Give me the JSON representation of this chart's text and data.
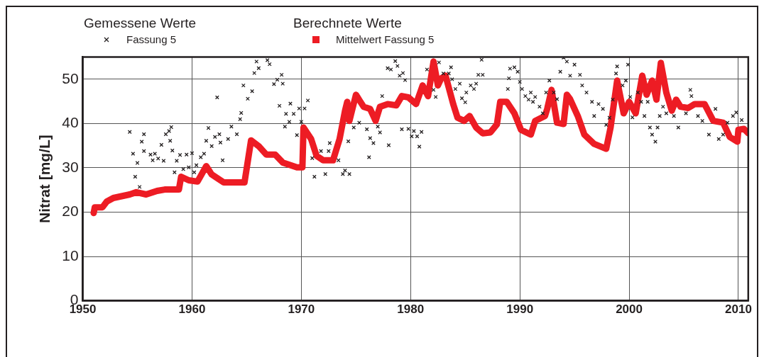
{
  "chart_data": {
    "type": "scatter",
    "ylabel": "Nitrat [mg/L]",
    "annotations": [
      "Gemessene Werte",
      "Berechnete Werte"
    ],
    "xlim": [
      1950,
      2010.9
    ],
    "xticks": [
      1950,
      1960,
      1970,
      1980,
      1990,
      2000,
      2010
    ],
    "ylim": [
      0,
      55
    ],
    "yticks": [
      0,
      10,
      20,
      30,
      40,
      50
    ],
    "grid": true,
    "legend": "top",
    "series": [
      {
        "name": "Fassung 5",
        "marker": "cross",
        "color": "#231f20",
        "x": [
          1954.3,
          1954.6,
          1954.8,
          1955.0,
          1955.2,
          1955.4,
          1955.6,
          1955.6,
          1956.2,
          1956.4,
          1956.6,
          1956.9,
          1957.2,
          1957.4,
          1957.6,
          1957.9,
          1958.1,
          1958.0,
          1958.2,
          1958.4,
          1958.6,
          1958.9,
          1959.2,
          1959.5,
          1959.7,
          1960.0,
          1960.2,
          1960.4,
          1960.8,
          1961.1,
          1961.3,
          1961.5,
          1961.8,
          1962.1,
          1962.3,
          1962.5,
          1962.6,
          1962.8,
          1963.3,
          1963.6,
          1964.1,
          1964.4,
          1964.5,
          1964.7,
          1965.1,
          1965.5,
          1965.7,
          1965.9,
          1966.1,
          1966.9,
          1967.1,
          1967.5,
          1967.8,
          1968.2,
          1968.3,
          1968.0,
          1968.5,
          1968.6,
          1968.9,
          1969.0,
          1969.3,
          1969.6,
          1969.8,
          1970.0,
          1970.3,
          1970.6,
          1971.0,
          1971.2,
          1971.8,
          1972.2,
          1972.5,
          1972.6,
          1973.4,
          1973.8,
          1974.0,
          1974.4,
          1974.3,
          1974.8,
          1975.3,
          1976.0,
          1976.2,
          1976.3,
          1976.6,
          1977.0,
          1977.2,
          1977.4,
          1978.0,
          1977.9,
          1978.2,
          1978.6,
          1978.8,
          1979.0,
          1979.3,
          1979.5,
          1979.2,
          1979.8,
          1980.1,
          1980.3,
          1980.6,
          1980.8,
          1981.0,
          1981.5,
          1982.1,
          1982.3,
          1982.6,
          1983.0,
          1983.5,
          1983.7,
          1983.8,
          1984.1,
          1984.5,
          1984.7,
          1985.0,
          1985.1,
          1985.5,
          1985.8,
          1986.0,
          1986.2,
          1986.6,
          1986.5,
          1988.9,
          1989.0,
          1989.1,
          1989.5,
          1989.8,
          1990.0,
          1990.2,
          1990.5,
          1990.8,
          1991.2,
          1991.0,
          1991.4,
          1991.8,
          1992.1,
          1992.4,
          1992.7,
          1993.1,
          1993.4,
          1993.7,
          1994.0,
          1994.3,
          1994.6,
          1995.0,
          1995.5,
          1995.7,
          1996.1,
          1996.6,
          1996.8,
          1997.2,
          1997.6,
          1997.9,
          1998.2,
          1998.5,
          1998.8,
          1998.9,
          1999.4,
          1999.7,
          1999.9,
          2000.1,
          2000.3,
          2000.8,
          2001.1,
          2001.4,
          2001.7,
          2001.9,
          2002.1,
          2002.4,
          2002.6,
          2002.8,
          2003.1,
          2003.4,
          2004.1,
          2004.5,
          2005.2,
          2005.6,
          2005.7,
          2006.3,
          2006.7,
          2007.3,
          2007.9,
          2008.2,
          2008.6,
          2009.0,
          2009.5,
          2009.8,
          2010.3
        ],
        "values": [
          38.1,
          33.2,
          28.0,
          31.1,
          25.7,
          35.9,
          37.6,
          33.8,
          33.0,
          31.7,
          33.2,
          32.1,
          35.2,
          31.6,
          37.6,
          38.3,
          39.2,
          36.1,
          33.9,
          29.0,
          31.6,
          32.9,
          29.7,
          33.0,
          30.1,
          33.3,
          29.0,
          30.6,
          32.4,
          33.2,
          36.1,
          39.0,
          34.9,
          37.0,
          45.9,
          37.6,
          35.7,
          31.7,
          36.5,
          39.3,
          37.6,
          41.0,
          42.4,
          48.6,
          45.6,
          47.3,
          51.4,
          54.0,
          52.5,
          54.3,
          53.4,
          48.9,
          49.9,
          51.0,
          49.0,
          44.0,
          39.3,
          42.2,
          40.4,
          44.5,
          42.2,
          37.4,
          43.4,
          40.4,
          43.4,
          45.2,
          32.2,
          28.0,
          33.8,
          28.6,
          33.8,
          35.6,
          31.7,
          28.6,
          29.4,
          28.6,
          36.0,
          39.1,
          40.2,
          38.7,
          32.4,
          36.7,
          35.6,
          39.3,
          38.0,
          46.2,
          35.1,
          52.5,
          52.2,
          54.1,
          53.0,
          50.8,
          51.4,
          49.8,
          38.7,
          38.8,
          37.1,
          38.3,
          37.1,
          34.8,
          38.1,
          52.2,
          47.6,
          46.0,
          53.8,
          51.3,
          51.3,
          52.7,
          50.0,
          47.8,
          49.0,
          45.7,
          44.8,
          47.0,
          48.6,
          47.8,
          49.0,
          51.0,
          51.0,
          54.4,
          47.8,
          50.2,
          52.4,
          52.7,
          51.7,
          49.4,
          47.8,
          46.2,
          45.4,
          44.9,
          47.0,
          46.0,
          43.8,
          42.3,
          47.0,
          49.7,
          47.0,
          45.5,
          51.7,
          54.9,
          54.0,
          50.8,
          53.3,
          51.0,
          48.6,
          47.0,
          44.9,
          41.7,
          44.4,
          43.3,
          39.7,
          41.3,
          45.4,
          51.3,
          52.9,
          48.6,
          49.7,
          53.3,
          46.0,
          41.4,
          47.0,
          44.9,
          41.7,
          44.9,
          39.1,
          37.5,
          35.9,
          39.1,
          41.7,
          43.8,
          42.3,
          41.7,
          39.1,
          42.3,
          47.6,
          46.2,
          41.7,
          40.6,
          37.5,
          43.3,
          36.5,
          37.5,
          40.2,
          41.7,
          42.5,
          40.8
        ]
      },
      {
        "name": "Mittelwert Fassung 5",
        "type": "line",
        "color": "#ed1c24",
        "x": [
          1951.0,
          1951.1,
          1951.8,
          1952.2,
          1952.8,
          1954.3,
          1954.9,
          1955.8,
          1956.8,
          1957.5,
          1958.8,
          1959.0,
          1959.7,
          1960.5,
          1961.3,
          1961.8,
          1962.9,
          1964.8,
          1965.4,
          1966.1,
          1966.8,
          1967.6,
          1968.3,
          1969.6,
          1970.1,
          1970.2,
          1970.9,
          1971.4,
          1972.0,
          1972.9,
          1973.5,
          1974.0,
          1974.2,
          1974.4,
          1975.0,
          1975.7,
          1976.3,
          1976.8,
          1977.2,
          1977.9,
          1978.7,
          1979.2,
          1979.8,
          1980.5,
          1981.1,
          1981.6,
          1982.1,
          1982.5,
          1982.8,
          1983.2,
          1983.9,
          1984.3,
          1984.9,
          1985.4,
          1986.0,
          1986.6,
          1987.3,
          1987.9,
          1988.2,
          1988.8,
          1989.5,
          1990.1,
          1991.0,
          1991.4,
          1992.3,
          1992.5,
          1992.9,
          1993.4,
          1994.0,
          1994.3,
          1994.6,
          1995.3,
          1995.9,
          1996.8,
          1997.9,
          1998.3,
          1998.9,
          1999.5,
          2000.0,
          2000.6,
          2001.2,
          2001.6,
          2002.1,
          2002.5,
          2002.9,
          2003.4,
          2003.9,
          2004.3,
          2004.7,
          2005.4,
          2006.0,
          2006.9,
          2007.7,
          2008.6,
          2009.2,
          2009.9,
          2010.0,
          2010.5,
          2010.9
        ],
        "values": [
          19.8,
          21.1,
          21.1,
          22.4,
          23.2,
          24.0,
          24.5,
          24.0,
          24.8,
          25.1,
          25.1,
          28.0,
          27.2,
          26.9,
          30.4,
          28.5,
          26.7,
          26.7,
          36.2,
          34.9,
          33.0,
          33.0,
          31.2,
          30.1,
          30.1,
          39.1,
          36.5,
          32.7,
          31.7,
          31.7,
          36.5,
          42.9,
          44.9,
          40.6,
          46.5,
          43.8,
          43.3,
          40.6,
          43.8,
          44.4,
          44.1,
          46.2,
          45.9,
          44.4,
          48.6,
          46.2,
          54.0,
          48.6,
          50.2,
          50.8,
          44.4,
          41.3,
          40.6,
          41.7,
          39.1,
          37.8,
          38.0,
          39.8,
          44.9,
          44.9,
          42.3,
          38.6,
          37.5,
          40.6,
          41.7,
          43.3,
          47.6,
          40.2,
          39.9,
          46.5,
          45.5,
          41.7,
          37.5,
          35.4,
          34.3,
          39.1,
          49.7,
          42.3,
          44.9,
          42.3,
          50.8,
          46.5,
          49.7,
          45.4,
          53.7,
          47.0,
          42.9,
          45.4,
          43.8,
          43.5,
          44.4,
          44.4,
          40.6,
          40.2,
          37.0,
          35.9,
          38.6,
          38.8,
          37.8
        ]
      }
    ]
  }
}
